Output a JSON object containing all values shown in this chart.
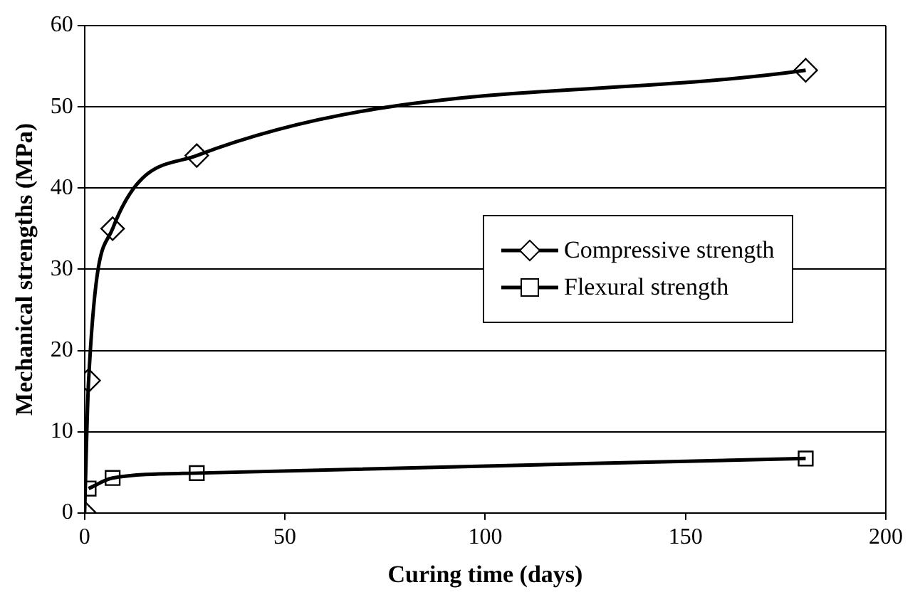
{
  "chart_data": {
    "type": "line",
    "xlabel": "Curing time (days)",
    "ylabel": "Mechanical strengths (MPa)",
    "xlim": [
      0,
      200
    ],
    "xticks": [
      0,
      50,
      100,
      150,
      200
    ],
    "ylim": [
      0,
      60
    ],
    "yticks": [
      0,
      10,
      20,
      30,
      40,
      50,
      60
    ],
    "grid": "y",
    "legend": "right",
    "line_style": "solid",
    "series": [
      {
        "name": "Compressive strength",
        "color": "#000000",
        "marker": "diamond",
        "x": [
          0,
          1,
          7,
          28,
          180
        ],
        "values": [
          0,
          16.3,
          35,
          44,
          54.5
        ]
      },
      {
        "name": "Flexural strength",
        "color": "#000000",
        "marker": "square",
        "x": [
          1,
          7,
          28,
          180
        ],
        "values": [
          3,
          4.3,
          4.9,
          6.7
        ]
      }
    ]
  }
}
